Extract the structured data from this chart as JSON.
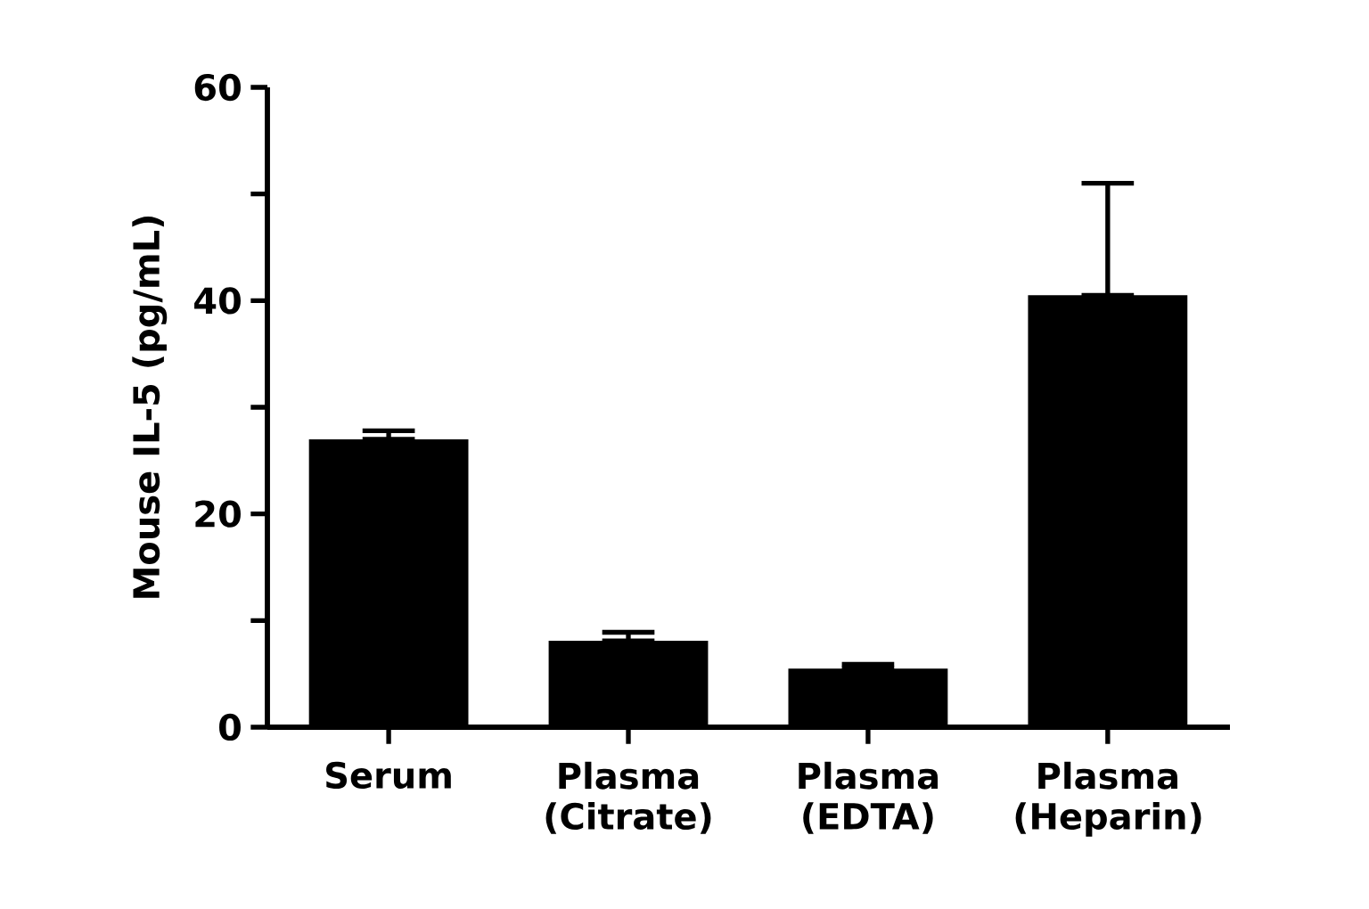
{
  "chart_data": {
    "type": "bar",
    "ylabel": "Mouse IL-5 (pg/mL)",
    "categories": [
      "Serum",
      "Plasma (Citrate)",
      "Plasma (EDTA)",
      "Plasma (Heparin)"
    ],
    "values": [
      27.0,
      8.1,
      5.5,
      40.5
    ],
    "errors": [
      [
        27.0,
        27.8
      ],
      [
        8.1,
        8.9
      ],
      [
        5.5,
        5.9
      ],
      [
        40.5,
        51.0
      ]
    ],
    "color": "#000000",
    "ylim": [
      0,
      60
    ],
    "yticks": [
      0,
      {
        "value": 10,
        "label": null
      },
      20,
      {
        "value": 30,
        "label": null
      },
      40,
      {
        "value": 50,
        "label": null
      },
      60
    ]
  }
}
